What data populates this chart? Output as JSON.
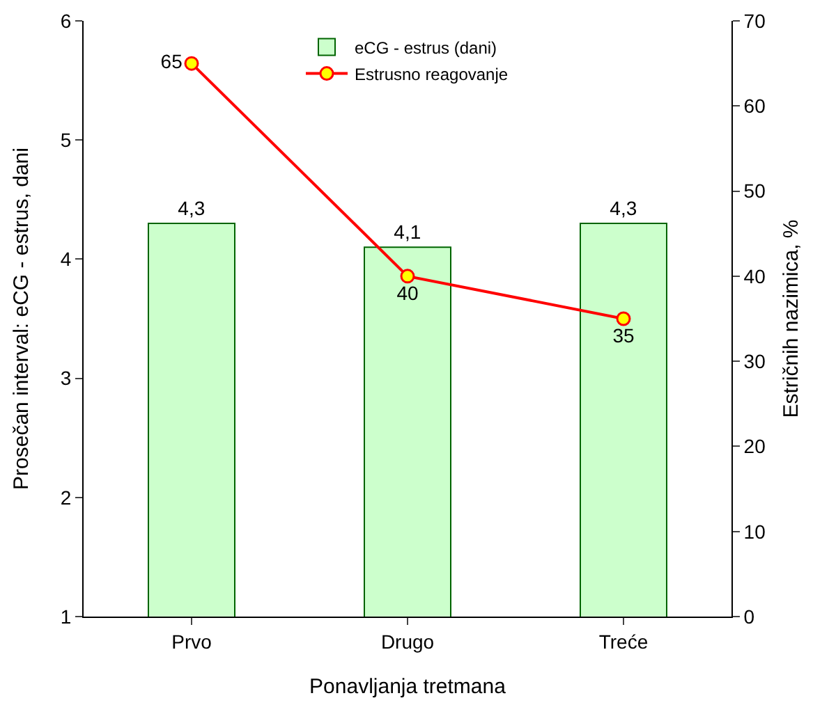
{
  "chart_data": {
    "type": "bar",
    "xlabel": "Ponavljanja tretmana",
    "ylabel": "Prosečan interval: eCG - estrus, dani",
    "y2label": "Estričnih nazimica, %",
    "categories": [
      "Prvo",
      "Drugo",
      "Treće"
    ],
    "series": [
      {
        "name": "eCG - estrus (dani)",
        "color": "#ccffcc",
        "values": [
          4.3,
          4.1,
          4.3
        ],
        "value_labels": [
          "4,3",
          "4,1",
          "4,3"
        ]
      },
      {
        "name": "Estrusno reagovanje",
        "type": "line",
        "axis": "y2",
        "color": "#ff0000",
        "values": [
          65,
          40,
          35
        ],
        "value_labels": [
          "65",
          "40",
          "35"
        ]
      }
    ],
    "ylim": [
      1,
      6
    ],
    "yticks": [
      1,
      2,
      3,
      4,
      5,
      6
    ],
    "y2lim": [
      0,
      70
    ],
    "y2ticks": [
      0,
      10,
      20,
      30,
      40,
      50,
      60,
      70
    ],
    "grid": false,
    "legend": "top",
    "marker": "circle",
    "line_style": "solid"
  }
}
